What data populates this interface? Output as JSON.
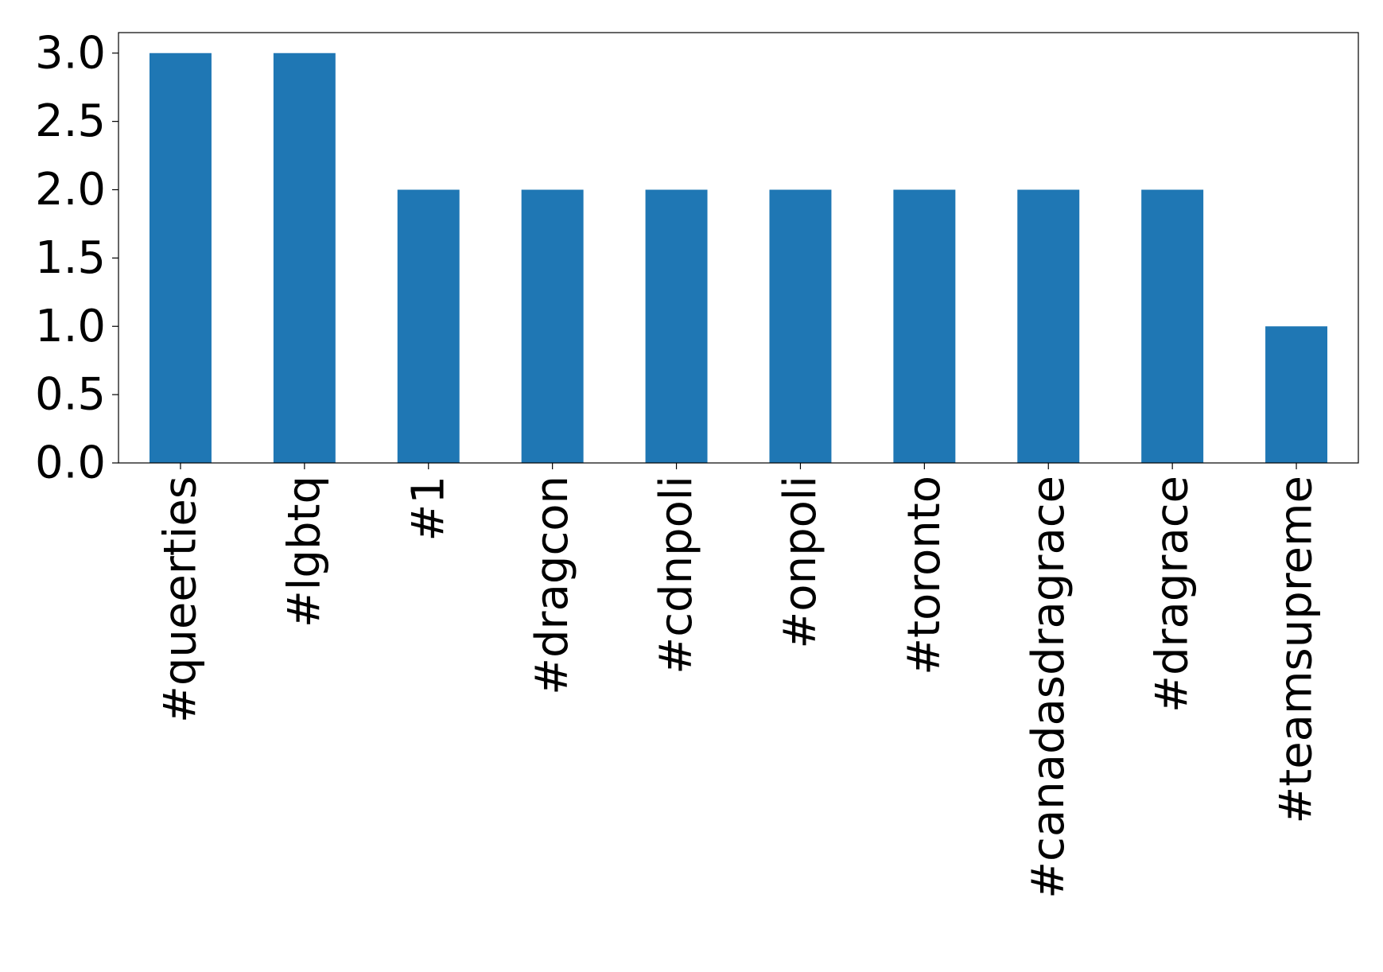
{
  "chart_data": {
    "type": "bar",
    "categories": [
      "#queerties",
      "#lgbtq",
      "#1",
      "#dragcon",
      "#cdnpoli",
      "#onpoli",
      "#toronto",
      "#canadasdragrace",
      "#dragrace",
      "#teamsupreme"
    ],
    "values": [
      3,
      3,
      2,
      2,
      2,
      2,
      2,
      2,
      2,
      1
    ],
    "color": "#1f77b4",
    "ylim": [
      0,
      3.15
    ],
    "yticks": [
      {
        "value": 0,
        "label": "0.0"
      },
      0.5,
      {
        "value": 1,
        "label": "1.0"
      },
      1.5,
      {
        "value": 2,
        "label": "2.0"
      },
      2.5,
      {
        "value": 3,
        "label": "3.0"
      }
    ],
    "grid": false
  }
}
